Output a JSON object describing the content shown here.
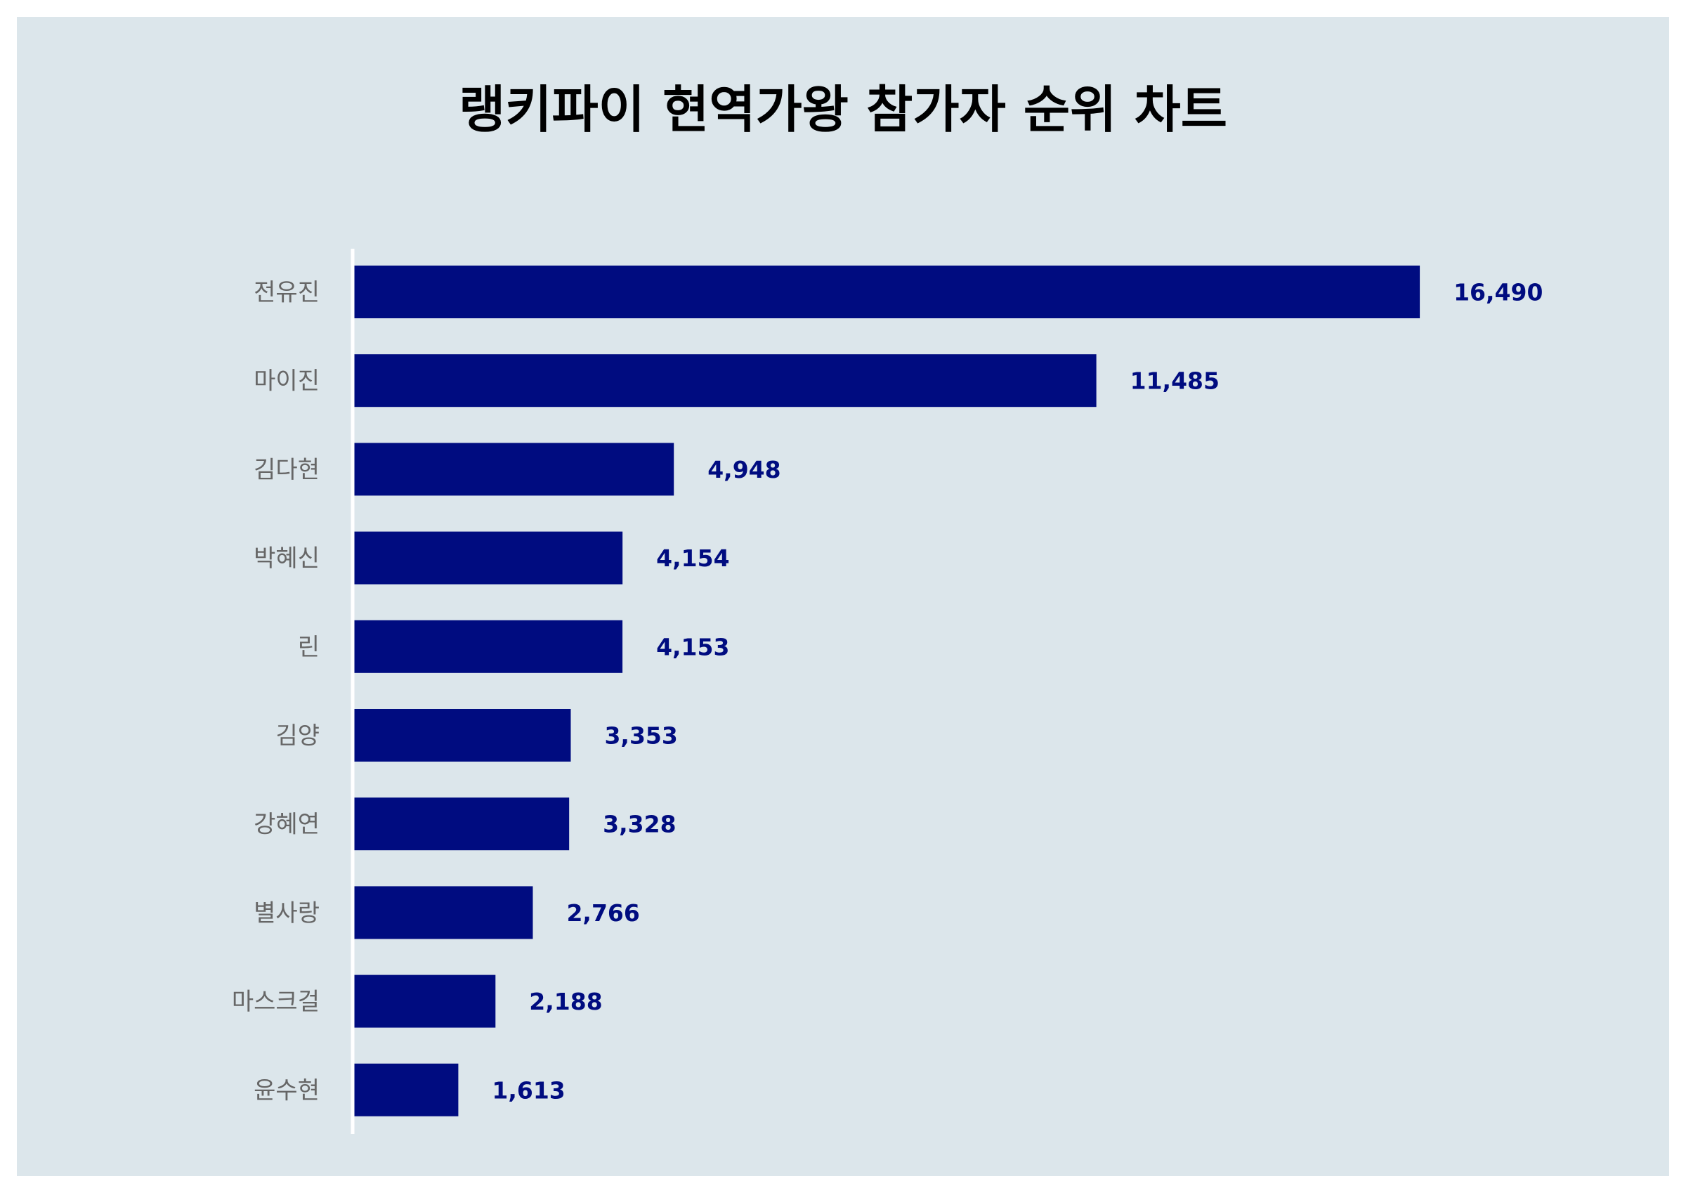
{
  "chart_data": {
    "type": "bar",
    "orientation": "horizontal",
    "title": "랭키파이 현역가왕 참가자 순위 차트",
    "categories": [
      "전유진",
      "마이진",
      "김다현",
      "박혜신",
      "린",
      "김양",
      "강혜연",
      "별사랑",
      "마스크걸",
      "윤수현"
    ],
    "values": [
      16490,
      11485,
      4948,
      4154,
      4153,
      3353,
      3328,
      2766,
      2188,
      1613
    ],
    "value_labels": [
      "16,490",
      "11,485",
      "4,948",
      "4,154",
      "4,153",
      "3,353",
      "3,328",
      "2,766",
      "2,188",
      "1,613"
    ],
    "xlim": [
      0,
      18000
    ],
    "xlabel": "",
    "ylabel": "",
    "grid": false,
    "legend": "none",
    "colors": {
      "bar": "#000c80",
      "value_label": "#000c80",
      "category_label": "#666666",
      "background": "#dce6eb",
      "axis_line": "#ffffff"
    }
  }
}
